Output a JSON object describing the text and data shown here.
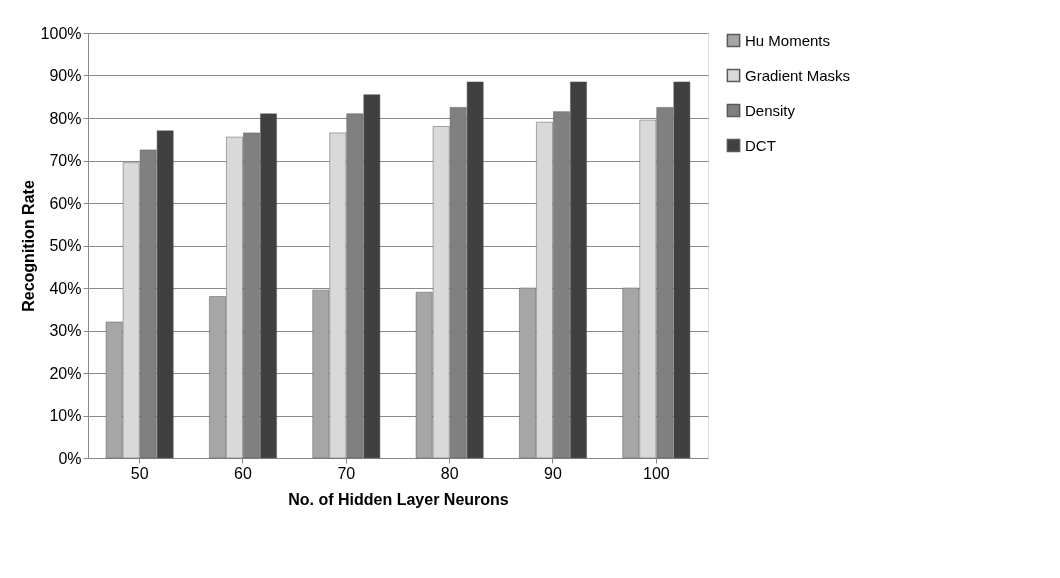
{
  "chart_data": {
    "type": "bar",
    "xlabel": "No. of Hidden Layer Neurons",
    "ylabel": "Recognition Rate",
    "categories": [
      "50",
      "60",
      "70",
      "80",
      "90",
      "100"
    ],
    "series": [
      {
        "name": "Hu Moments",
        "color": "#a6a6a6",
        "values": [
          0.32,
          0.38,
          0.395,
          0.39,
          0.4,
          0.4
        ]
      },
      {
        "name": "Gradient Masks",
        "color": "#d9d9d9",
        "values": [
          0.695,
          0.755,
          0.765,
          0.78,
          0.79,
          0.795
        ]
      },
      {
        "name": "Density",
        "color": "#808080",
        "values": [
          0.725,
          0.765,
          0.81,
          0.825,
          0.815,
          0.825
        ]
      },
      {
        "name": "DCT",
        "color": "#404040",
        "values": [
          0.77,
          0.81,
          0.855,
          0.885,
          0.885,
          0.885
        ]
      }
    ],
    "ylim": [
      0,
      1
    ],
    "yticks": [
      {
        "value": 0,
        "label": "0%"
      },
      {
        "value": 0.1,
        "label": "10%"
      },
      {
        "value": 0.2,
        "label": "20%"
      },
      {
        "value": 0.3,
        "label": "30%"
      },
      {
        "value": 0.4,
        "label": "40%"
      },
      {
        "value": 0.5,
        "label": "50%"
      },
      {
        "value": 0.6,
        "label": "60%"
      },
      {
        "value": 0.7,
        "label": "70%"
      },
      {
        "value": 0.8,
        "label": "80%"
      },
      {
        "value": 0.9,
        "label": "90%"
      },
      {
        "value": 1,
        "label": "100%"
      }
    ],
    "grid": "y",
    "legend": "right"
  }
}
